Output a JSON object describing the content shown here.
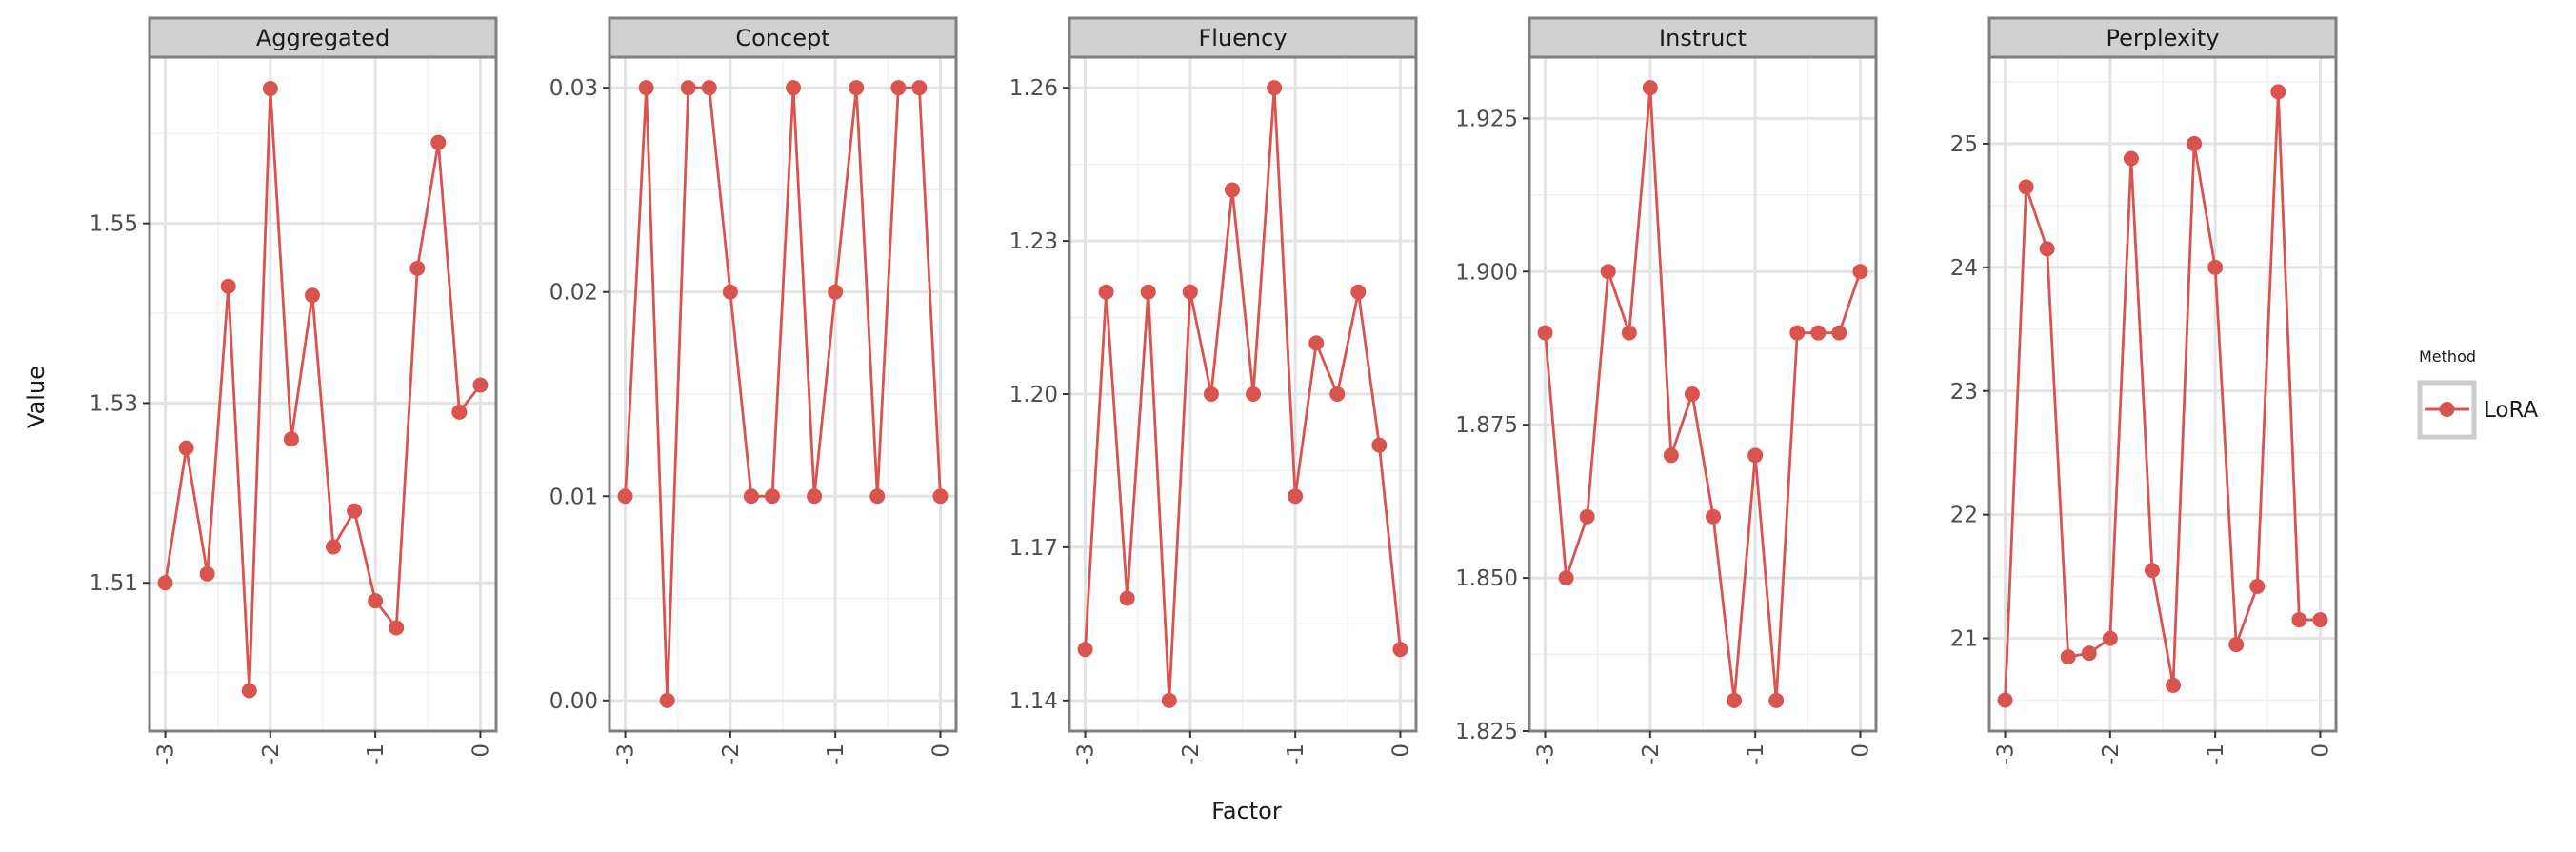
{
  "chart_data": {
    "type": "line",
    "xlabel": "Factor",
    "ylabel": "Value",
    "x": [
      -3.0,
      -2.8,
      -2.6,
      -2.4,
      -2.2,
      -2.0,
      -1.8,
      -1.6,
      -1.4,
      -1.2,
      -1.0,
      -0.8,
      -0.6,
      -0.4,
      -0.2,
      0.0
    ],
    "xlim": [
      -3.15,
      0.15
    ],
    "xticks": [
      -3,
      -2,
      -1,
      0
    ],
    "xtick_labels": [
      "-3",
      "-2",
      "-1",
      "0"
    ],
    "grid": true,
    "legend": {
      "title": "Method",
      "placement": "right",
      "entries": [
        {
          "label": "LoRA",
          "color": "#d9534f"
        }
      ]
    },
    "series_color": "#d9534f",
    "panels": [
      {
        "title": "Aggregated",
        "series": [
          {
            "name": "LoRA",
            "values": [
              1.51,
              1.525,
              1.511,
              1.543,
              1.498,
              1.565,
              1.526,
              1.542,
              1.514,
              1.518,
              1.508,
              1.505,
              1.545,
              1.559,
              1.529,
              1.532
            ]
          }
        ],
        "ylim": [
          1.4935,
          1.5685
        ],
        "yticks": [
          1.51,
          1.53,
          1.55
        ],
        "ytick_labels": [
          "1.51",
          "1.53",
          "1.55"
        ]
      },
      {
        "title": "Concept",
        "series": [
          {
            "name": "LoRA",
            "values": [
              0.01,
              0.03,
              0.0,
              0.03,
              0.03,
              0.02,
              0.01,
              0.01,
              0.03,
              0.01,
              0.02,
              0.03,
              0.01,
              0.03,
              0.03,
              0.01
            ]
          }
        ],
        "ylim": [
          -0.0015,
          0.0315
        ],
        "yticks": [
          0.0,
          0.01,
          0.02,
          0.03
        ],
        "ytick_labels": [
          "0.00",
          "0.01",
          "0.02",
          "0.03"
        ]
      },
      {
        "title": "Fluency",
        "series": [
          {
            "name": "LoRA",
            "values": [
              1.15,
              1.22,
              1.16,
              1.22,
              1.14,
              1.22,
              1.2,
              1.24,
              1.2,
              1.26,
              1.18,
              1.21,
              1.2,
              1.22,
              1.19,
              1.15
            ]
          }
        ],
        "ylim": [
          1.134,
          1.266
        ],
        "yticks": [
          1.14,
          1.17,
          1.2,
          1.23,
          1.26
        ],
        "ytick_labels": [
          "1.14",
          "1.17",
          "1.20",
          "1.23",
          "1.26"
        ]
      },
      {
        "title": "Instruct",
        "series": [
          {
            "name": "LoRA",
            "values": [
              1.89,
              1.85,
              1.86,
              1.9,
              1.89,
              1.93,
              1.87,
              1.88,
              1.86,
              1.83,
              1.87,
              1.83,
              1.89,
              1.89,
              1.89,
              1.9
            ]
          }
        ],
        "ylim": [
          1.825,
          1.935
        ],
        "yticks": [
          1.825,
          1.85,
          1.875,
          1.9,
          1.925
        ],
        "ytick_labels": [
          "1.825",
          "1.850",
          "1.875",
          "1.900",
          "1.925"
        ]
      },
      {
        "title": "Perplexity",
        "series": [
          {
            "name": "LoRA",
            "values": [
              20.5,
              24.65,
              24.15,
              20.85,
              20.88,
              21.0,
              24.88,
              21.55,
              20.62,
              25.0,
              24.0,
              20.95,
              21.42,
              25.42,
              21.15,
              21.15
            ]
          }
        ],
        "ylim": [
          20.25,
          25.7
        ],
        "yticks": [
          21,
          22,
          23,
          24,
          25
        ],
        "ytick_labels": [
          "21",
          "22",
          "23",
          "24",
          "25"
        ]
      }
    ]
  }
}
